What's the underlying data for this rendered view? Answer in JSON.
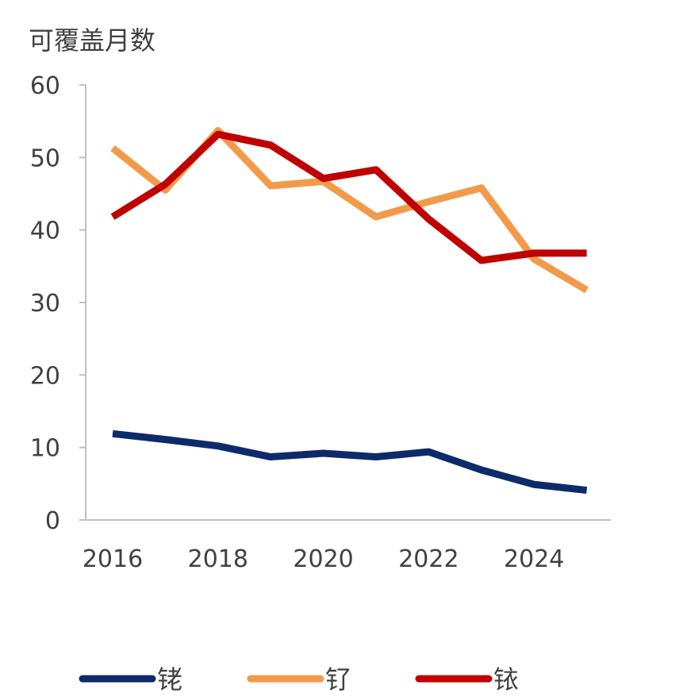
{
  "chart_data": {
    "type": "line",
    "title": "可覆盖月数",
    "xlabel": "",
    "ylabel": "",
    "x": [
      2016,
      2017,
      2018,
      2019,
      2020,
      2021,
      2022,
      2023,
      2024,
      2025
    ],
    "x_tick_labels": [
      "2016",
      "2018",
      "2020",
      "2022",
      "2024"
    ],
    "y_tick_labels": [
      "0",
      "10",
      "20",
      "30",
      "40",
      "50",
      "60"
    ],
    "ylim": [
      0,
      60
    ],
    "grid": false,
    "legend_position": "bottom",
    "series": [
      {
        "name": "铑",
        "color": "#0d2a6b",
        "values": [
          11.9,
          11.1,
          10.2,
          8.7,
          9.2,
          8.7,
          9.4,
          6.9,
          4.9,
          4.1
        ]
      },
      {
        "name": "钌",
        "color": "#f39a4a",
        "values": [
          51.3,
          45.5,
          53.7,
          46.1,
          46.7,
          41.8,
          43.9,
          45.8,
          36.0,
          31.7
        ]
      },
      {
        "name": "铱",
        "color": "#c00000",
        "values": [
          41.8,
          46.3,
          53.2,
          51.7,
          47.1,
          48.3,
          41.5,
          35.8,
          36.8,
          36.8
        ]
      }
    ]
  }
}
